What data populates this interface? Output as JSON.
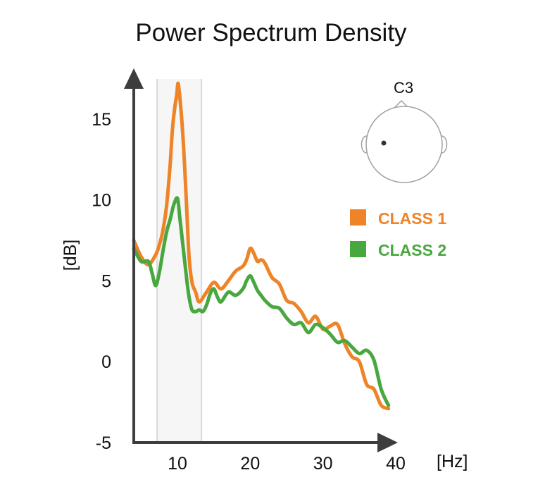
{
  "chart_data": {
    "type": "line",
    "title": "Power Spectrum Density",
    "xlabel": "[Hz]",
    "ylabel": "[dB]",
    "xlim": [
      4,
      40
    ],
    "ylim": [
      -5,
      18
    ],
    "xticks": [
      10,
      20,
      30,
      40
    ],
    "yticks": [
      15,
      10,
      5,
      0,
      -5
    ],
    "grid": false,
    "legend_position": "right",
    "highlight_band": [
      7.2,
      13.3
    ],
    "electrode": {
      "label": "C3",
      "icon": "head-topography-icon"
    },
    "series": [
      {
        "name": "CLASS 1",
        "color": "#ee8427",
        "x": [
          4,
          5,
          6,
          7,
          7.5,
          8,
          8.5,
          9,
          9.3,
          9.6,
          9.9,
          10.1,
          10.4,
          10.7,
          11,
          11.3,
          11.6,
          12,
          12.5,
          13,
          14,
          15,
          16,
          17,
          18,
          19,
          19.5,
          20,
          20.5,
          21,
          21.5,
          22,
          23,
          24,
          25,
          26,
          27,
          28,
          29,
          30,
          31,
          32,
          33,
          34,
          35,
          36,
          37,
          38,
          39
        ],
        "y": [
          7.5,
          6.5,
          6.0,
          6.6,
          7.2,
          8.1,
          9.6,
          12.2,
          14.3,
          15.6,
          16.5,
          17.2,
          16.0,
          14.3,
          12.0,
          9.2,
          6.5,
          4.9,
          4.3,
          3.7,
          4.3,
          4.9,
          4.5,
          5.0,
          5.6,
          5.9,
          6.3,
          7.0,
          6.7,
          6.2,
          6.3,
          6.1,
          5.2,
          4.8,
          3.8,
          3.6,
          3.1,
          2.4,
          2.8,
          2.0,
          2.2,
          2.3,
          1.1,
          0.3,
          0.0,
          -1.4,
          -1.7,
          -2.7,
          -2.9
        ]
      },
      {
        "name": "CLASS 2",
        "color": "#48a83f",
        "x": [
          4,
          5,
          6,
          6.5,
          7,
          7.5,
          8,
          8.5,
          9,
          9.5,
          10,
          10.3,
          10.6,
          11,
          11.3,
          11.6,
          12,
          12.5,
          13,
          13.5,
          14,
          14.5,
          15,
          15.5,
          16,
          17,
          18,
          19,
          19.5,
          20,
          20.5,
          21,
          21.5,
          22,
          23,
          24,
          25,
          26,
          27,
          28,
          29,
          30,
          31,
          32,
          33,
          34,
          35,
          36,
          37,
          38,
          39
        ],
        "y": [
          7.0,
          6.2,
          6.2,
          5.5,
          4.7,
          5.5,
          6.8,
          8.0,
          8.8,
          9.7,
          10.1,
          9.0,
          7.8,
          6.2,
          5.0,
          4.0,
          3.2,
          3.1,
          3.2,
          3.1,
          3.5,
          4.2,
          4.5,
          4.0,
          3.7,
          4.3,
          4.1,
          4.5,
          5.0,
          5.3,
          4.9,
          4.4,
          4.1,
          3.8,
          3.4,
          3.3,
          2.7,
          2.3,
          2.4,
          1.8,
          2.3,
          2.1,
          1.7,
          1.2,
          1.3,
          0.9,
          0.5,
          0.7,
          0.1,
          -1.7,
          -2.7
        ]
      }
    ]
  }
}
